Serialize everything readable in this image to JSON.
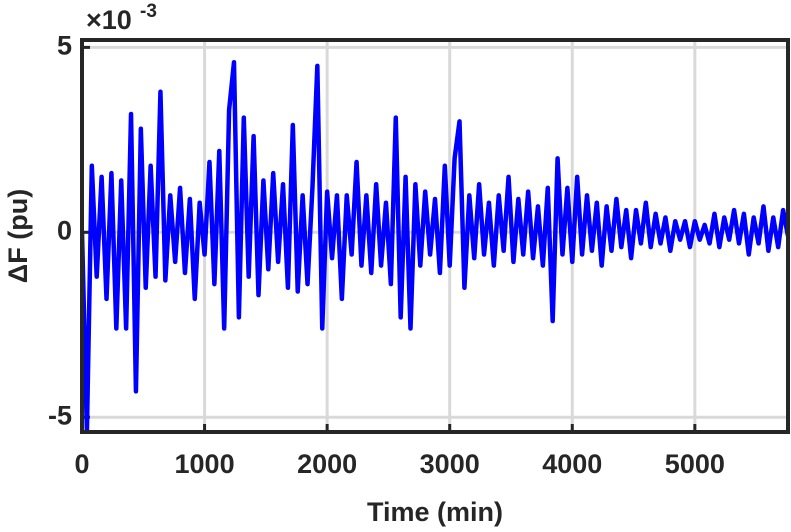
{
  "chart_data": {
    "type": "line",
    "x_label": "Time (min)",
    "y_label": "ΔF (pu)",
    "y_multiplier": {
      "base": "×10",
      "exponent": "-3"
    },
    "xlim": [
      0,
      5760
    ],
    "ylim": [
      -5.4,
      5.2
    ],
    "xticks": [
      0,
      1000,
      2000,
      3000,
      4000,
      5000
    ],
    "yticks": [
      -5,
      0,
      5
    ],
    "grid": true,
    "x": [
      0,
      40,
      80,
      120,
      160,
      200,
      240,
      280,
      320,
      360,
      400,
      440,
      480,
      520,
      560,
      600,
      640,
      680,
      720,
      760,
      800,
      840,
      880,
      920,
      960,
      1000,
      1040,
      1080,
      1120,
      1160,
      1200,
      1240,
      1280,
      1320,
      1360,
      1400,
      1440,
      1480,
      1520,
      1560,
      1600,
      1640,
      1680,
      1720,
      1760,
      1800,
      1840,
      1880,
      1920,
      1960,
      2000,
      2040,
      2080,
      2120,
      2160,
      2200,
      2240,
      2280,
      2320,
      2360,
      2400,
      2440,
      2480,
      2520,
      2560,
      2600,
      2640,
      2680,
      2720,
      2760,
      2800,
      2840,
      2880,
      2920,
      2960,
      3000,
      3040,
      3080,
      3120,
      3160,
      3200,
      3240,
      3280,
      3320,
      3360,
      3400,
      3440,
      3480,
      3520,
      3560,
      3600,
      3640,
      3680,
      3720,
      3760,
      3800,
      3840,
      3880,
      3920,
      3960,
      4000,
      4040,
      4080,
      4120,
      4160,
      4200,
      4240,
      4280,
      4320,
      4360,
      4400,
      4440,
      4480,
      4520,
      4560,
      4600,
      4640,
      4680,
      4720,
      4760,
      4800,
      4840,
      4880,
      4920,
      4960,
      5000,
      5040,
      5080,
      5120,
      5160,
      5200,
      5240,
      5280,
      5320,
      5360,
      5400,
      5440,
      5480,
      5520,
      5560,
      5600,
      5640,
      5680,
      5720,
      5760
    ],
    "series": [
      {
        "name": "ΔF",
        "color": "#0000ff",
        "values": [
          0,
          -5.4,
          1.8,
          -1.2,
          1.5,
          -1.8,
          1.6,
          -2.6,
          1.4,
          -2.6,
          3.2,
          -4.3,
          2.8,
          -1.5,
          1.8,
          -1.2,
          3.8,
          -1.3,
          1.0,
          -0.8,
          1.2,
          -1.1,
          0.9,
          -1.8,
          0.8,
          -0.6,
          1.9,
          -1.4,
          2.2,
          -2.6,
          3.3,
          4.6,
          -2.3,
          3.1,
          -1.2,
          2.6,
          -1.7,
          1.4,
          -1.0,
          1.6,
          -0.8,
          1.3,
          -1.5,
          2.9,
          -1.6,
          1.0,
          -1.4,
          1.2,
          4.5,
          -2.6,
          1.1,
          -0.7,
          1.0,
          -1.8,
          1.0,
          -0.6,
          1.9,
          -0.9,
          1.0,
          -1.1,
          1.3,
          -0.9,
          0.8,
          -1.4,
          3.1,
          -2.3,
          1.5,
          -2.6,
          1.3,
          -0.9,
          1.1,
          -0.6,
          0.9,
          -1.1,
          1.8,
          -0.9,
          2.0,
          3.0,
          -1.5,
          1.0,
          -0.7,
          1.3,
          -0.6,
          0.8,
          -0.9,
          1.0,
          -0.5,
          1.5,
          -0.8,
          0.9,
          -0.6,
          1.1,
          -0.7,
          0.7,
          -0.9,
          1.2,
          -2.4,
          2.0,
          -0.6,
          1.2,
          -0.8,
          1.5,
          -0.6,
          1.0,
          -0.5,
          0.8,
          -0.9,
          0.7,
          -0.5,
          0.9,
          -0.4,
          0.6,
          -0.7,
          0.6,
          -0.3,
          0.8,
          -0.4,
          0.5,
          -0.3,
          0.4,
          -0.5,
          0.3,
          -0.2,
          0.3,
          -0.4,
          0.3,
          -0.2,
          0.2,
          -0.3,
          0.5,
          -0.4,
          0.4,
          -0.2,
          0.6,
          -0.3,
          0.5,
          -0.6,
          0.4,
          -0.3,
          0.7,
          -0.5,
          0.4,
          -0.4,
          0.6,
          -0.1
        ]
      }
    ]
  }
}
